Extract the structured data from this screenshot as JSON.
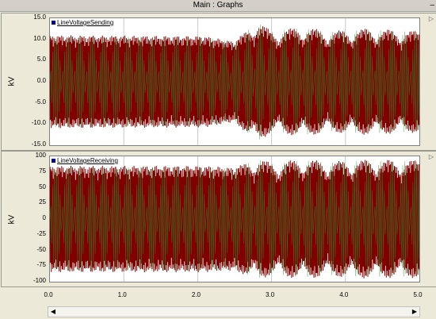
{
  "window": {
    "title": "Main : Graphs",
    "close_glyph": "–"
  },
  "chart_data": [
    {
      "type": "line",
      "series": [
        {
          "name": "LineVoltageSending",
          "color": "#800000"
        }
      ],
      "ylabel": "kV",
      "ylim": [
        -15,
        15
      ],
      "yticks": [
        "15.0",
        "10.0",
        "5.0",
        "0.0",
        "-5.0",
        "-10.0",
        "-15.0"
      ],
      "xlim": [
        0,
        5
      ],
      "envelope": [
        {
          "t": 0.0,
          "amp": 11.0
        },
        {
          "t": 2.1,
          "amp": 10.8
        },
        {
          "t": 2.5,
          "amp": 9.5
        },
        {
          "t": 2.8,
          "amp": 14.5
        },
        {
          "t": 3.0,
          "amp": 12.0
        },
        {
          "t": 3.4,
          "amp": 13.0
        },
        {
          "t": 3.8,
          "amp": 12.0
        },
        {
          "t": 4.3,
          "amp": 12.6
        },
        {
          "t": 5.0,
          "amp": 12.0
        }
      ],
      "grid": true
    },
    {
      "type": "line",
      "series": [
        {
          "name": "LineVoltageReceiving",
          "color": "#800000"
        }
      ],
      "ylabel": "kV",
      "ylim": [
        -100,
        100
      ],
      "yticks": [
        "100",
        "75",
        "50",
        "25",
        "0",
        "-25",
        "-50",
        "-75",
        "-100"
      ],
      "xlim": [
        0,
        5
      ],
      "envelope": [
        {
          "t": 0.0,
          "amp": 85.0
        },
        {
          "t": 2.1,
          "amp": 85.0
        },
        {
          "t": 2.5,
          "amp": 82.0
        },
        {
          "t": 2.8,
          "amp": 98.0
        },
        {
          "t": 3.0,
          "amp": 90.0
        },
        {
          "t": 3.4,
          "amp": 96.0
        },
        {
          "t": 3.8,
          "amp": 92.0
        },
        {
          "t": 4.3,
          "amp": 95.0
        },
        {
          "t": 5.0,
          "amp": 94.0
        }
      ],
      "grid": true
    }
  ],
  "xaxis": {
    "ticks": [
      "0.0",
      "1.0",
      "2.0",
      "3.0",
      "4.0",
      "5.0"
    ]
  }
}
